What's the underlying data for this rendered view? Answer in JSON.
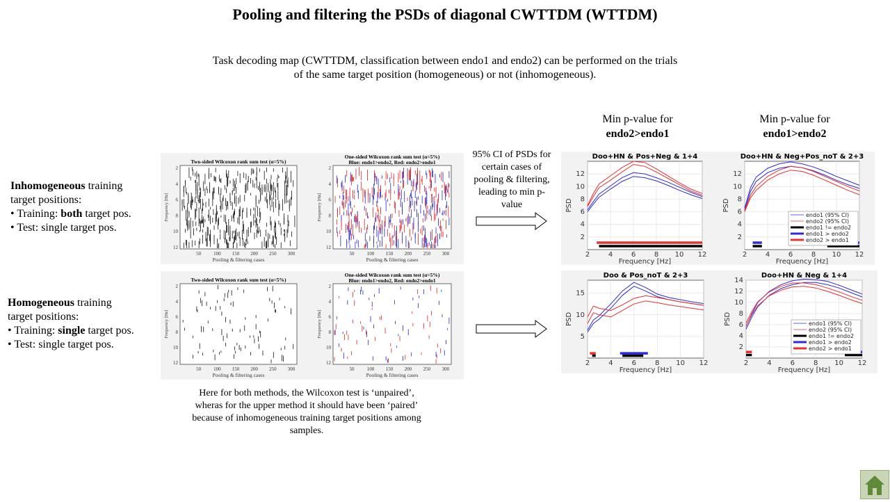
{
  "title": "Pooling and filtering the PSDs of diagonal CWTTDM  (WTTDM)",
  "description": {
    "line1": "Task decoding map (CWTTDM, classification  between endo1 and endo2) can be performed on the trials",
    "line2": "of the same target position (homogeneous) or not (inhomogeneous)."
  },
  "column_headers": [
    {
      "line1": "Min  p-value for",
      "line2": "endo2>endo1"
    },
    {
      "line1": "Min  p-value for",
      "line2": "endo1>endo2"
    }
  ],
  "inhomogeneous": {
    "bold": "Inhomogeneous",
    "rest": " training",
    "line2": "target positions:",
    "training_prefix": "• Training:  ",
    "training_bold": "both",
    "training_suffix": " target pos.",
    "test": "• Test: single target pos."
  },
  "homogeneous": {
    "bold": "Homogeneous",
    "rest": " training",
    "line2": "target positions:",
    "training_prefix": "• Training:  ",
    "training_bold": "single",
    "training_suffix": " target pos.",
    "test": "• Test: single target pos."
  },
  "ci_text": [
    "95% CI of PSDs for",
    "certain  cases of",
    "pooling  & filtering,",
    "leading  to min  p-",
    "value"
  ],
  "note": [
    "Here for both methods,  the Wilcoxon  test is ‘unpaired’,",
    "wheras for the upper method it should have been ‘paired’",
    "because of inhomogeneous  training  target positions  among",
    "samples."
  ],
  "colors": {
    "endo1": "#2b2bd9",
    "endo2": "#e83030",
    "neq": "#000000",
    "panel": "#f2f2f2"
  },
  "icons": {
    "home": "home-icon",
    "arrow": "right-arrow-icon"
  },
  "wilcoxon_figures": [
    {
      "two_sided_title": "Two-sided Wilcoxon rank sum test (α=5%)",
      "one_sided_title_1": "One-sided Wilcoxon rank sum test (α=5%)",
      "one_sided_title_2": "Blue: endo1>endo2, Red: endo2>endo1",
      "ylabel": "Frequency [Hz]",
      "xlabel": "Pooling & filtering cases",
      "xticks": [
        "50",
        "100",
        "150",
        "200",
        "250",
        "300"
      ],
      "yticks": [
        "2",
        "4",
        "6",
        "8",
        "10",
        "12"
      ]
    },
    {
      "two_sided_title": "Two-sided Wilcoxon rank sum test (α=5%)",
      "one_sided_title_1": "One-sided Wilcoxon rank sum test (α=5%)",
      "one_sided_title_2": "Blue: endo1>endo2, Red: endo2>endo1",
      "ylabel": "Frequency [Hz]",
      "xlabel": "Pooling & filtering cases",
      "xticks": [
        "50",
        "100",
        "150",
        "200",
        "250",
        "300"
      ],
      "yticks": [
        "2",
        "4",
        "6",
        "8",
        "10",
        "12"
      ]
    }
  ],
  "chart_data": [
    {
      "type": "line",
      "title": "Doo+HN & Pos+Neg & 1+4",
      "xlabel": "Frequency [Hz]",
      "ylabel": "PSD",
      "xlim": [
        2,
        12
      ],
      "ylim": [
        0,
        14
      ],
      "xticks": [
        2,
        4,
        6,
        8,
        10,
        12
      ],
      "yticks": [
        2,
        4,
        6,
        8,
        10,
        12
      ],
      "legend": null,
      "x": [
        2,
        2.5,
        3,
        4,
        5,
        6,
        7,
        8,
        9,
        10,
        11,
        12
      ],
      "series": [
        {
          "color": "#2b2bd9",
          "values": [
            6.0,
            7.2,
            8.3,
            9.6,
            10.8,
            11.6,
            11.4,
            10.9,
            10.2,
            9.4,
            8.7,
            8.1
          ]
        },
        {
          "color": "#2b2bd9",
          "values": [
            6.3,
            7.6,
            8.8,
            10.1,
            11.4,
            12.2,
            12.0,
            11.4,
            10.7,
            9.9,
            9.1,
            8.4
          ]
        },
        {
          "color": "#e83030",
          "values": [
            6.8,
            8.4,
            9.8,
            11.0,
            12.3,
            13.5,
            13.2,
            12.3,
            11.3,
            10.3,
            9.3,
            8.6
          ]
        },
        {
          "color": "#e83030",
          "values": [
            7.0,
            8.9,
            10.4,
            11.7,
            13.0,
            14.0,
            13.8,
            12.8,
            11.7,
            10.6,
            9.6,
            8.9
          ]
        }
      ],
      "sig_bars": [
        {
          "color": "#e83030",
          "from": 2.8,
          "to": 12,
          "y": 1.1
        },
        {
          "color": "#000000",
          "from": 3.0,
          "to": 12,
          "y": 0.55
        }
      ]
    },
    {
      "type": "line",
      "title": "Doo+HN & Neg+Pos_noT & 2+3",
      "xlabel": "Frequency [Hz]",
      "ylabel": "PSD",
      "xlim": [
        2,
        12
      ],
      "ylim": [
        0,
        14
      ],
      "xticks": [
        2,
        4,
        6,
        8,
        10,
        12
      ],
      "yticks": [
        2,
        4,
        6,
        8,
        10,
        12
      ],
      "legend": {
        "placement": "lower-right",
        "entries": [
          "endo1 (95% CI)",
          "endo2 (95% CI)",
          "endo1 != endo2",
          "endo1 > endo2",
          "endo2 > endo1"
        ]
      },
      "x": [
        2,
        2.5,
        3,
        4,
        5,
        6,
        7,
        8,
        9,
        10,
        11,
        12
      ],
      "series": [
        {
          "color": "#2b2bd9",
          "values": [
            6.3,
            9.2,
            10.8,
            12.2,
            12.9,
            13.2,
            13.0,
            12.5,
            11.8,
            11.0,
            10.3,
            9.7
          ]
        },
        {
          "color": "#2b2bd9",
          "values": [
            6.6,
            9.8,
            11.5,
            12.9,
            13.6,
            13.9,
            13.6,
            13.1,
            12.4,
            11.6,
            10.9,
            10.2
          ]
        },
        {
          "color": "#e83030",
          "values": [
            6.0,
            8.2,
            9.4,
            11.0,
            12.0,
            12.6,
            12.4,
            11.8,
            11.0,
            10.2,
            9.4,
            8.7
          ]
        },
        {
          "color": "#e83030",
          "values": [
            6.2,
            8.6,
            10.0,
            11.6,
            12.6,
            13.2,
            13.0,
            12.4,
            11.6,
            10.8,
            10.0,
            9.3
          ]
        }
      ],
      "sig_bars": [
        {
          "color": "#2b2bd9",
          "from": 2.7,
          "to": 3.5,
          "y": 1.1
        },
        {
          "color": "#000000",
          "from": 2.7,
          "to": 3.5,
          "y": 0.55
        },
        {
          "color": "#2b2bd9",
          "from": 9.2,
          "to": 12,
          "y": 1.1
        },
        {
          "color": "#000000",
          "from": 9.2,
          "to": 12,
          "y": 0.55
        }
      ]
    },
    {
      "type": "line",
      "title": "Doo & Pos_noT & 2+3",
      "xlabel": "Frequency [Hz]",
      "ylabel": "PSD",
      "xlim": [
        2,
        12
      ],
      "ylim": [
        0,
        18
      ],
      "xticks": [
        2,
        4,
        6,
        8,
        10,
        12
      ],
      "yticks": [
        5,
        10,
        15
      ],
      "legend": null,
      "x": [
        2,
        2.5,
        3,
        4,
        5,
        6,
        7,
        8,
        9,
        10,
        11,
        12
      ],
      "series": [
        {
          "color": "#2b2bd9",
          "values": [
            6.0,
            8.0,
            9.0,
            11.5,
            14.5,
            16.6,
            15.5,
            14.2,
            13.5,
            13.0,
            12.6,
            12.2
          ]
        },
        {
          "color": "#2b2bd9",
          "values": [
            6.5,
            8.8,
            9.8,
            12.5,
            15.5,
            17.5,
            16.3,
            14.8,
            14.0,
            13.5,
            13.0,
            12.6
          ]
        },
        {
          "color": "#e83030",
          "values": [
            8.0,
            10.5,
            10.0,
            9.5,
            11.0,
            12.5,
            13.2,
            12.8,
            12.3,
            11.9,
            11.5,
            11.1
          ]
        },
        {
          "color": "#e83030",
          "values": [
            9.5,
            12.0,
            11.5,
            11.0,
            12.3,
            13.8,
            14.4,
            14.0,
            13.5,
            13.0,
            12.6,
            12.2
          ]
        }
      ],
      "sig_bars": [
        {
          "color": "#e83030",
          "from": 2.2,
          "to": 2.7,
          "y": 1.1
        },
        {
          "color": "#000000",
          "from": 2.4,
          "to": 2.7,
          "y": 0.55
        },
        {
          "color": "#2b2bd9",
          "from": 4.8,
          "to": 7.2,
          "y": 1.1
        },
        {
          "color": "#000000",
          "from": 5.0,
          "to": 6.8,
          "y": 0.55
        }
      ]
    },
    {
      "type": "line",
      "title": "Doo+HN & Neg & 1+4",
      "xlabel": "Frequency [Hz]",
      "ylabel": "PSD",
      "xlim": [
        2,
        12
      ],
      "ylim": [
        0,
        14
      ],
      "xticks": [
        2,
        4,
        6,
        8,
        10,
        12
      ],
      "yticks": [
        2,
        4,
        6,
        8,
        10,
        12,
        14
      ],
      "legend": {
        "placement": "lower-right",
        "entries": [
          "endo1 (95% CI)",
          "endo2 (95% CI)",
          "endo1 != endo2",
          "endo1 > endo2",
          "endo2 > endo1"
        ]
      },
      "x": [
        2,
        2.5,
        3,
        4,
        5,
        6,
        7,
        8,
        9,
        10,
        11,
        12
      ],
      "series": [
        {
          "color": "#2b2bd9",
          "values": [
            5.2,
            7.4,
            9.2,
            11.3,
            12.5,
            13.2,
            13.6,
            13.6,
            13.2,
            12.6,
            11.8,
            11.0
          ]
        },
        {
          "color": "#2b2bd9",
          "values": [
            5.7,
            8.0,
            10.0,
            12.0,
            13.2,
            13.9,
            14.2,
            14.1,
            13.8,
            13.1,
            12.3,
            11.5
          ]
        },
        {
          "color": "#e83030",
          "values": [
            5.8,
            7.8,
            9.4,
            11.2,
            12.2,
            12.8,
            12.9,
            12.6,
            12.0,
            11.3,
            10.5,
            9.8
          ]
        },
        {
          "color": "#e83030",
          "values": [
            6.3,
            8.4,
            10.1,
            11.9,
            12.9,
            13.5,
            13.5,
            13.2,
            12.6,
            11.9,
            11.1,
            10.4
          ]
        }
      ],
      "sig_bars": [
        {
          "color": "#e83030",
          "from": 2.0,
          "to": 2.5,
          "y": 1.1
        },
        {
          "color": "#000000",
          "from": 2.0,
          "to": 2.5,
          "y": 0.55
        },
        {
          "color": "#2b2bd9",
          "from": 10.5,
          "to": 12,
          "y": 1.1
        },
        {
          "color": "#000000",
          "from": 10.5,
          "to": 12,
          "y": 0.55
        }
      ]
    }
  ]
}
